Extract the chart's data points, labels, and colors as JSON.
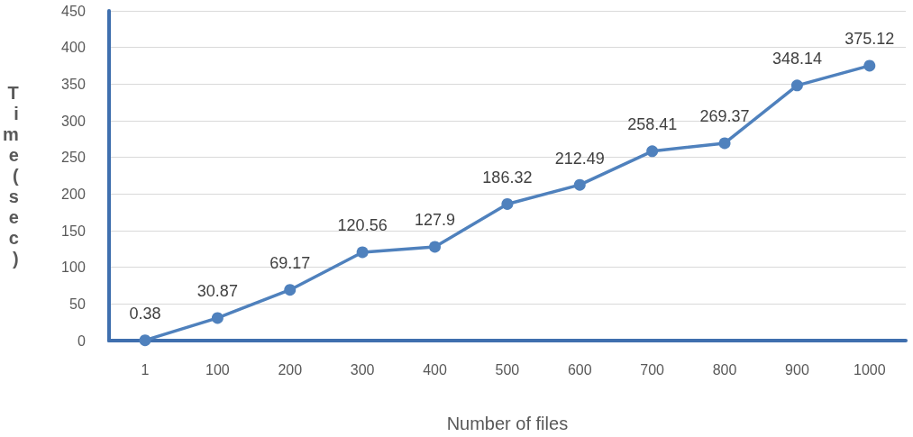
{
  "chart_data": {
    "type": "line",
    "xlabel": "Number of files",
    "ylabel": "Time(sec)",
    "categories": [
      "1",
      "100",
      "200",
      "300",
      "400",
      "500",
      "600",
      "700",
      "800",
      "900",
      "1000"
    ],
    "values": [
      0.38,
      30.87,
      69.17,
      120.56,
      127.9,
      186.32,
      212.49,
      258.41,
      269.37,
      348.14,
      375.12
    ],
    "color": "#4f81bd",
    "ylim": [
      0,
      450
    ],
    "yticks": [
      0,
      50,
      100,
      150,
      200,
      250,
      300,
      350,
      400,
      450
    ],
    "grid": "y",
    "marker": "circle",
    "line_style": "solid",
    "data_labels": true
  }
}
